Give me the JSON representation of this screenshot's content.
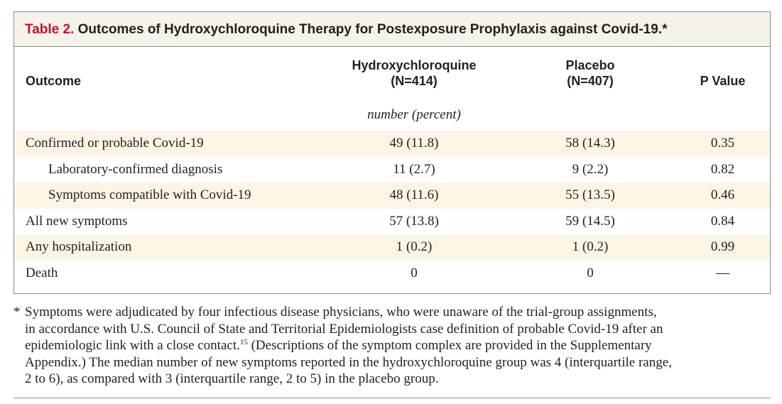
{
  "table": {
    "label": "Table 2.",
    "title": "Outcomes of Hydroxychloroquine Therapy for Postexposure Prophylaxis against Covid-19.*",
    "headers": {
      "outcome": "Outcome",
      "hcq_name": "Hydroxychloroquine",
      "hcq_n": "(N=414)",
      "placebo_name": "Placebo",
      "placebo_n": "(N=407)",
      "p_value": "P Value"
    },
    "units": "number (percent)",
    "rows": [
      {
        "label": "Confirmed or probable Covid-19",
        "hcq": "49 (11.8)",
        "placebo": "58 (14.3)",
        "p": "0.35"
      },
      {
        "label": "Laboratory-confirmed diagnosis",
        "hcq": "11 (2.7)",
        "placebo": "9 (2.2)",
        "p": "0.82"
      },
      {
        "label": "Symptoms compatible with Covid-19",
        "hcq": "48 (11.6)",
        "placebo": "55 (13.5)",
        "p": "0.46"
      },
      {
        "label": "All new symptoms",
        "hcq": "57 (13.8)",
        "placebo": "59 (14.5)",
        "p": "0.84"
      },
      {
        "label": "Any hospitalization",
        "hcq": "1 (0.2)",
        "placebo": "1 (0.2)",
        "p": "0.99"
      },
      {
        "label": "Death",
        "hcq": "0",
        "placebo": "0",
        "p": "—"
      }
    ]
  },
  "footnote": {
    "marker": "*",
    "line1": "Symptoms were adjudicated by four infectious disease physicians, who were unaware of the trial-group assignments,",
    "line2": "in accordance with U.S. Council of State and Territorial Epidemiologists case definition of probable Covid-19 after an",
    "line3_a": "epidemiologic link with a close contact.",
    "line3_ref": "15",
    "line3_b": " (Descriptions of the symptom complex are provided in the Supplementary",
    "line4": "Appendix.) The median number of new symptoms reported in the hydroxychloroquine group was 4 (interquartile range,",
    "line5": "2 to 6), as compared with 3 (interquartile range, 2 to 5) in the placebo group."
  }
}
